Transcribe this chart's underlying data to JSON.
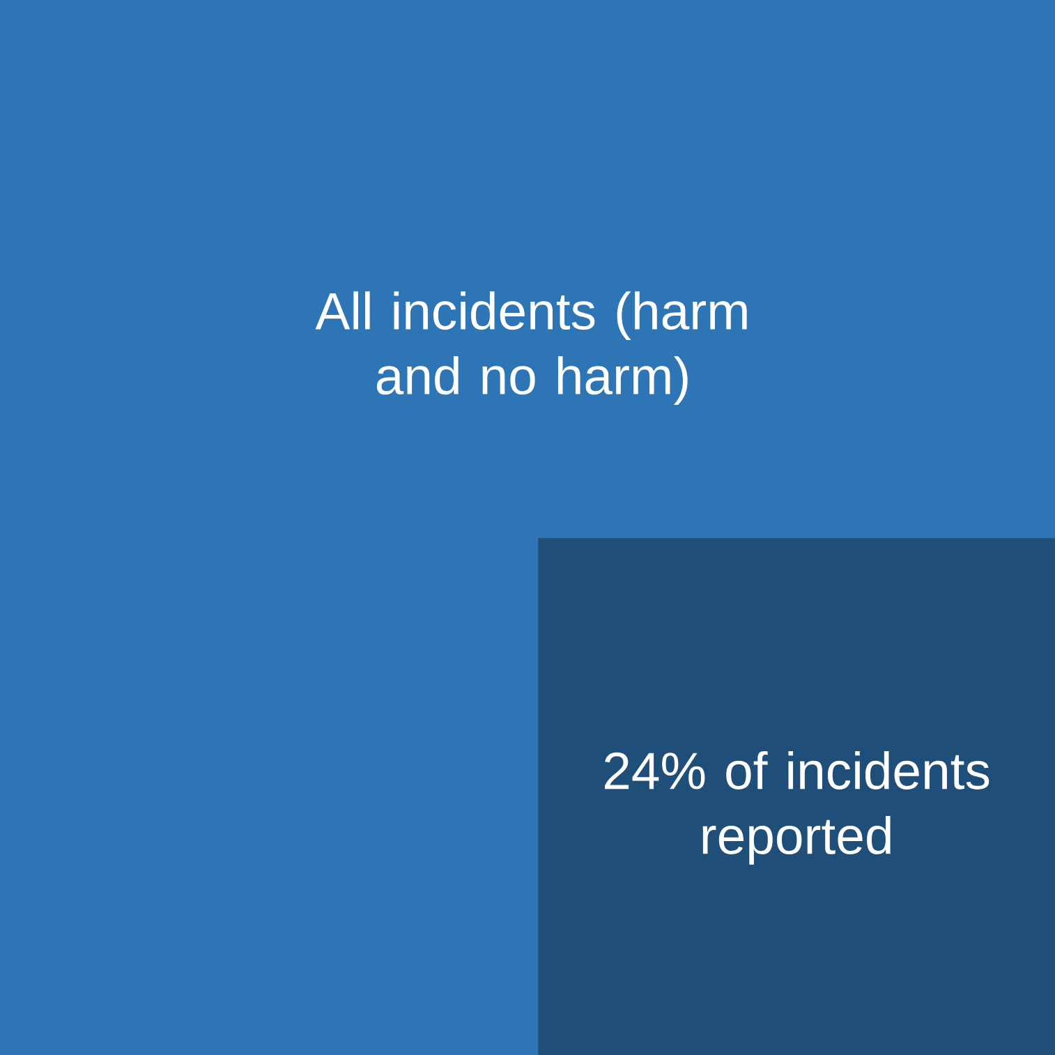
{
  "chart_data": {
    "type": "other",
    "categories": [
      "All incidents (harm and no harm)",
      "of incidents reported"
    ],
    "values": [
      null,
      24
    ],
    "value_labels": [
      null,
      "24%"
    ],
    "colors": [
      "#2e75b6",
      "#1f4e79"
    ]
  }
}
